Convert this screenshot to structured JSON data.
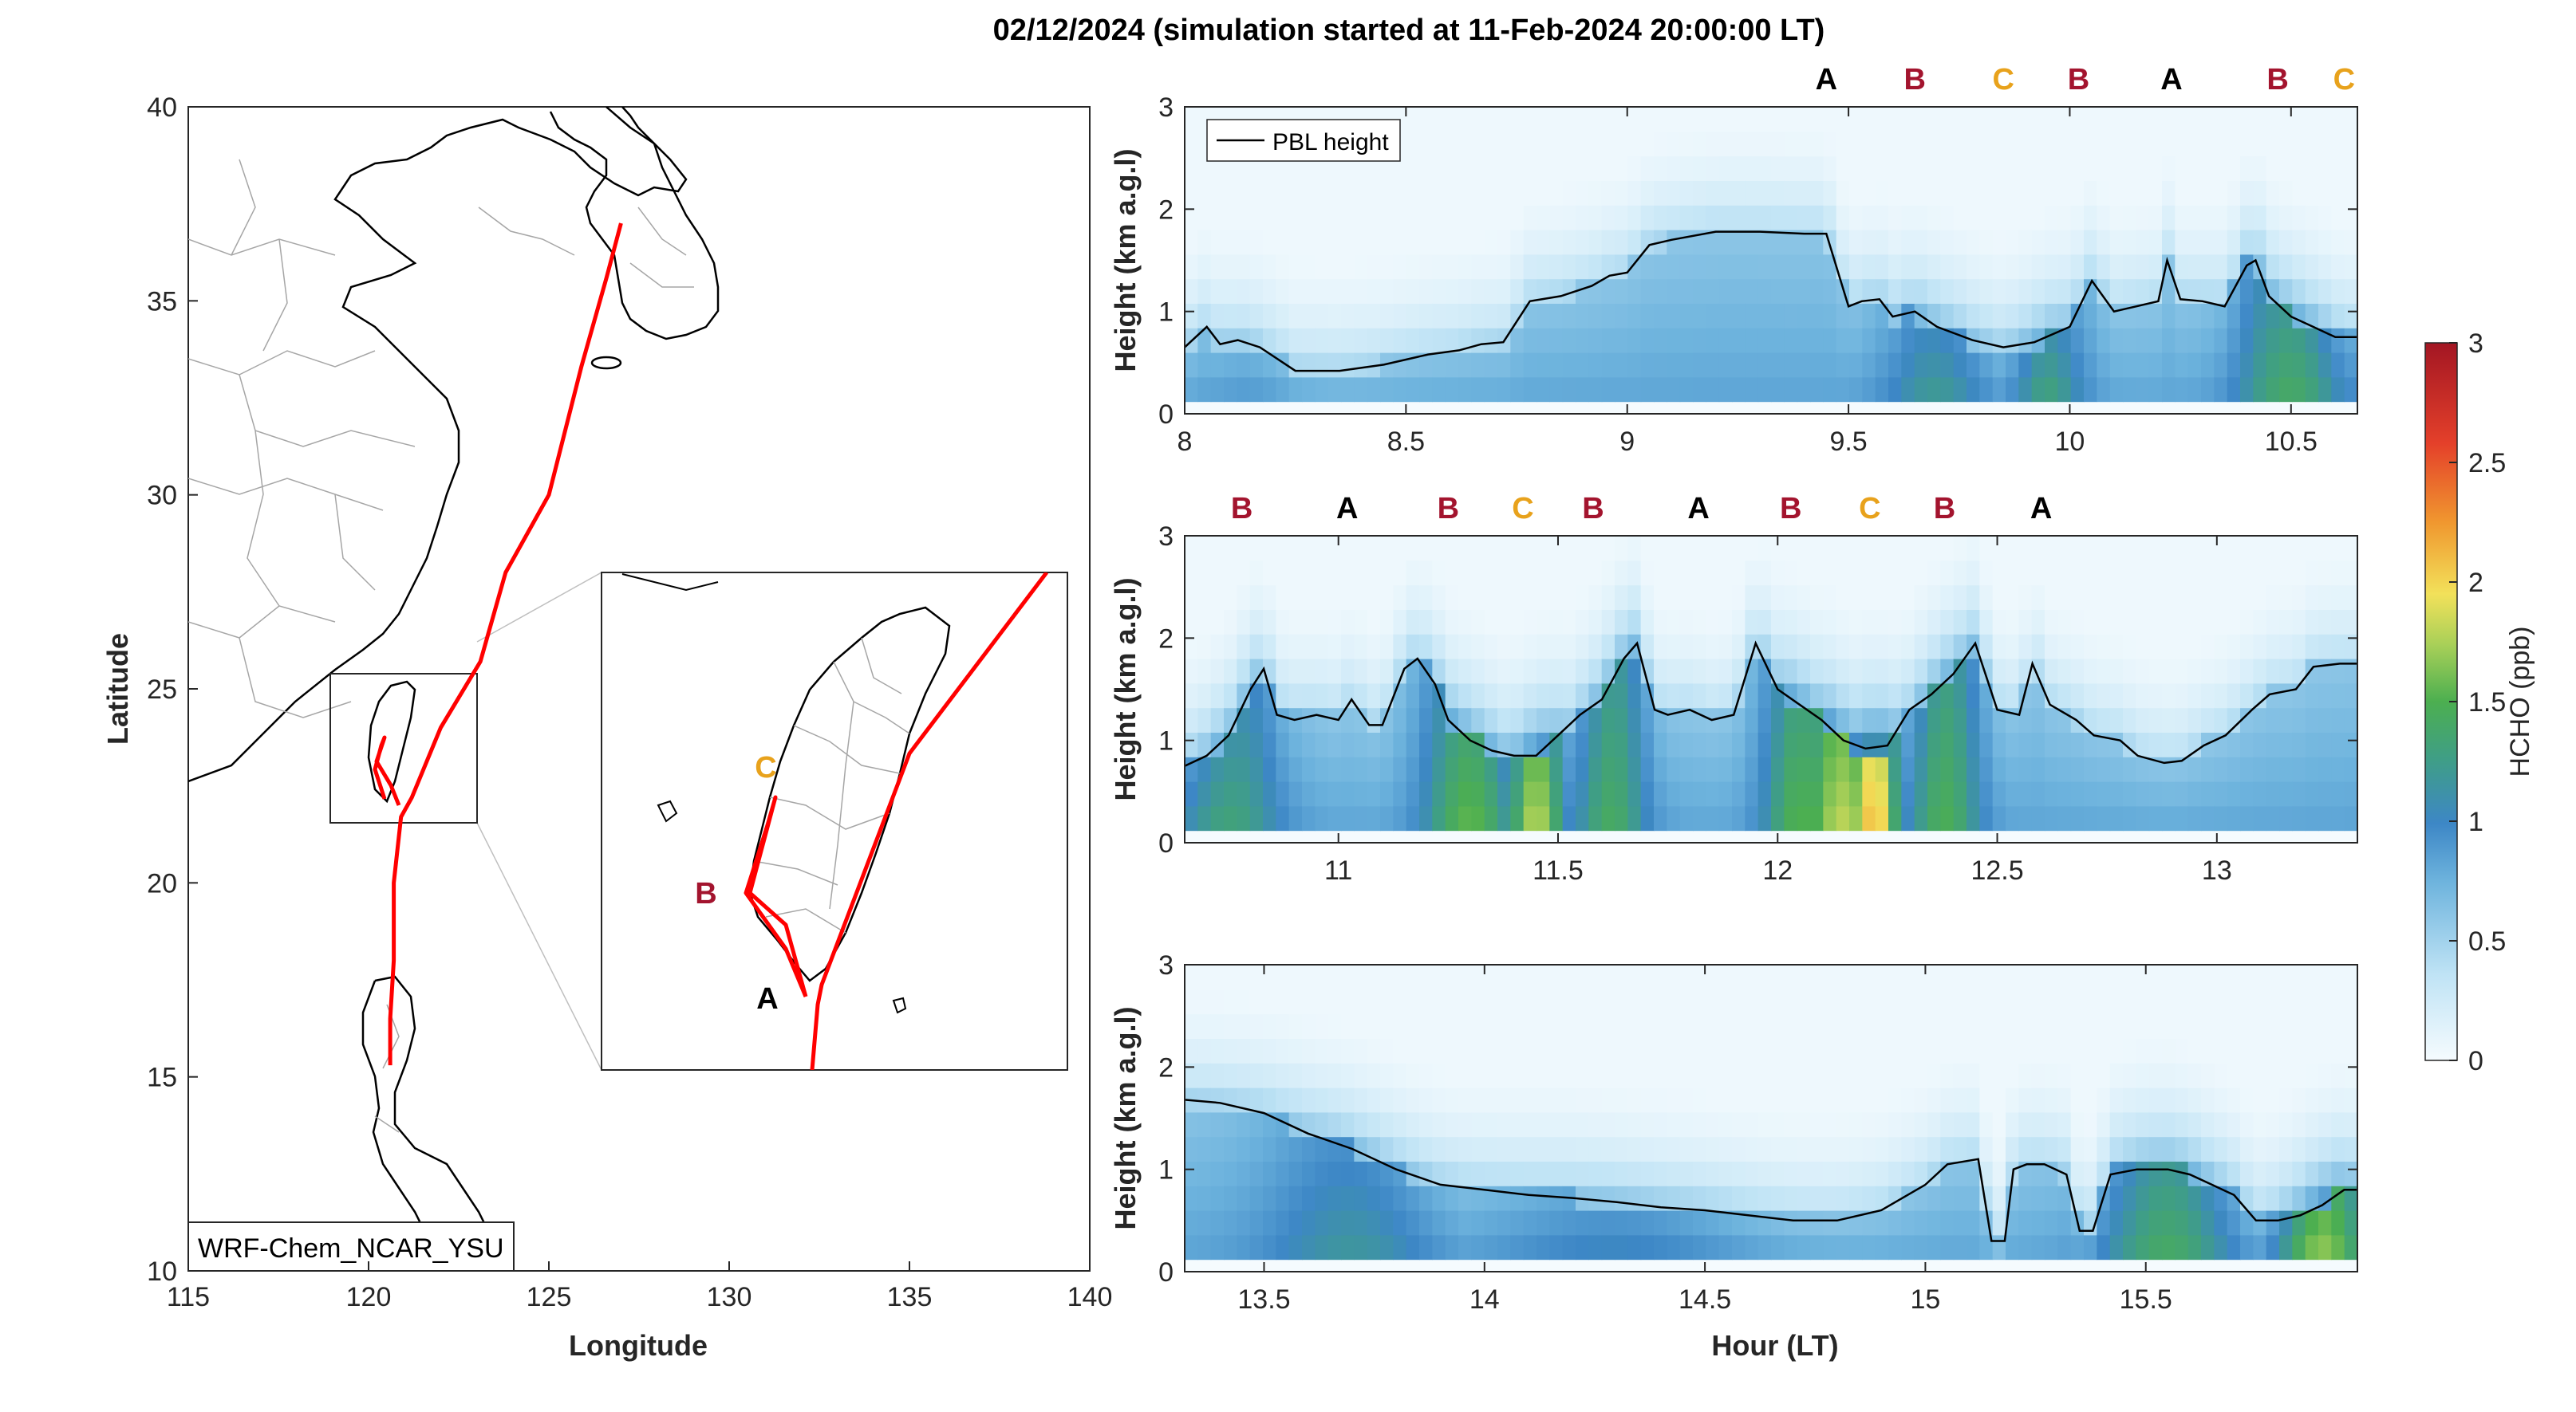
{
  "title": "02/12/2024 (simulation started at 11-Feb-2024 20:00:00 LT)",
  "colors": {
    "A": "#000000",
    "B": "#a3142e",
    "C": "#e8a21c",
    "track": "#ff0000",
    "pbl": "#000000"
  },
  "map": {
    "xlabel": "Longitude",
    "ylabel": "Latitude",
    "xlim": [
      115,
      140
    ],
    "ylim": [
      10,
      40
    ],
    "xticks": [
      "115",
      "120",
      "125",
      "130",
      "135",
      "140"
    ],
    "yticks": [
      "10",
      "15",
      "20",
      "25",
      "30",
      "35",
      "40"
    ],
    "model_label": "WRF-Chem_NCAR_YSU",
    "inset_letters": [
      "C",
      "B",
      "A"
    ],
    "track": [
      [
        127.0,
        37.0
      ],
      [
        126.6,
        35.6
      ],
      [
        125.9,
        33.3
      ],
      [
        125.0,
        30.0
      ],
      [
        123.8,
        28.0
      ],
      [
        123.1,
        25.7
      ],
      [
        122.0,
        24.0
      ],
      [
        121.2,
        22.2
      ],
      [
        120.9,
        21.7
      ],
      [
        120.7,
        20.0
      ],
      [
        120.7,
        18.0
      ],
      [
        120.6,
        16.5
      ],
      [
        120.6,
        15.3
      ]
    ]
  },
  "chart_data": [
    {
      "type": "heatmap",
      "xlabel": "",
      "ylabel": "Height (km a.g.l)",
      "xlim": [
        8.0,
        10.65
      ],
      "ylim": [
        0,
        3
      ],
      "xticks": [
        "8",
        "8.5",
        "9",
        "9.5",
        "10",
        "10.5"
      ],
      "yticks": [
        "0",
        "1",
        "2",
        "3"
      ],
      "legend": "PBL height",
      "legend_position": "top-left",
      "letters": [
        {
          "label": "A",
          "x": 9.45
        },
        {
          "label": "B",
          "x": 9.65
        },
        {
          "label": "C",
          "x": 9.85
        },
        {
          "label": "B",
          "x": 10.02
        },
        {
          "label": "A",
          "x": 10.23
        },
        {
          "label": "B",
          "x": 10.47
        },
        {
          "label": "C",
          "x": 10.62
        }
      ],
      "series": [
        {
          "name": "PBL height",
          "x": [
            8.0,
            8.05,
            8.08,
            8.12,
            8.17,
            8.25,
            8.35,
            8.45,
            8.55,
            8.62,
            8.67,
            8.72,
            8.78,
            8.85,
            8.92,
            8.96,
            9.0,
            9.05,
            9.1,
            9.2,
            9.3,
            9.4,
            9.45,
            9.5,
            9.53,
            9.57,
            9.6,
            9.65,
            9.7,
            9.78,
            9.85,
            9.92,
            10.0,
            10.05,
            10.1,
            10.15,
            10.2,
            10.22,
            10.25,
            10.3,
            10.35,
            10.4,
            10.42,
            10.45,
            10.5,
            10.55,
            10.6,
            10.65
          ],
          "y": [
            0.65,
            0.85,
            0.68,
            0.72,
            0.65,
            0.42,
            0.42,
            0.48,
            0.58,
            0.62,
            0.68,
            0.7,
            1.1,
            1.15,
            1.25,
            1.35,
            1.38,
            1.65,
            1.7,
            1.78,
            1.78,
            1.76,
            1.76,
            1.05,
            1.1,
            1.12,
            0.95,
            1.0,
            0.85,
            0.72,
            0.65,
            0.7,
            0.85,
            1.3,
            1.0,
            1.05,
            1.1,
            1.5,
            1.12,
            1.1,
            1.05,
            1.45,
            1.5,
            1.15,
            0.95,
            0.85,
            0.75,
            0.75
          ]
        }
      ]
    },
    {
      "type": "heatmap",
      "xlabel": "",
      "ylabel": "Height (km a.g.l)",
      "xlim": [
        10.65,
        13.32
      ],
      "ylim": [
        0,
        3
      ],
      "xticks": [
        "11",
        "11.5",
        "12",
        "12.5",
        "13"
      ],
      "yticks": [
        "0",
        "1",
        "2",
        "3"
      ],
      "letters": [
        {
          "label": "B",
          "x": 10.78
        },
        {
          "label": "A",
          "x": 11.02
        },
        {
          "label": "B",
          "x": 11.25
        },
        {
          "label": "C",
          "x": 11.42
        },
        {
          "label": "B",
          "x": 11.58
        },
        {
          "label": "A",
          "x": 11.82
        },
        {
          "label": "B",
          "x": 12.03
        },
        {
          "label": "C",
          "x": 12.21
        },
        {
          "label": "B",
          "x": 12.38
        },
        {
          "label": "A",
          "x": 12.6
        }
      ],
      "series": [
        {
          "name": "PBL height",
          "x": [
            10.65,
            10.7,
            10.75,
            10.8,
            10.83,
            10.86,
            10.9,
            10.95,
            11.0,
            11.03,
            11.07,
            11.1,
            11.15,
            11.18,
            11.22,
            11.25,
            11.3,
            11.35,
            11.4,
            11.45,
            11.5,
            11.55,
            11.6,
            11.65,
            11.68,
            11.72,
            11.75,
            11.8,
            11.85,
            11.9,
            11.95,
            12.0,
            12.05,
            12.1,
            12.15,
            12.2,
            12.25,
            12.3,
            12.35,
            12.4,
            12.45,
            12.5,
            12.55,
            12.58,
            12.62,
            12.68,
            12.72,
            12.78,
            12.82,
            12.88,
            12.92,
            12.97,
            13.02,
            13.08,
            13.12,
            13.18,
            13.22,
            13.28,
            13.32
          ],
          "y": [
            0.75,
            0.85,
            1.05,
            1.5,
            1.7,
            1.25,
            1.2,
            1.25,
            1.2,
            1.4,
            1.15,
            1.15,
            1.7,
            1.8,
            1.55,
            1.2,
            1.0,
            0.9,
            0.85,
            0.85,
            1.05,
            1.25,
            1.4,
            1.8,
            1.95,
            1.3,
            1.25,
            1.3,
            1.2,
            1.25,
            1.95,
            1.5,
            1.35,
            1.2,
            1.0,
            0.92,
            0.95,
            1.3,
            1.45,
            1.65,
            1.95,
            1.3,
            1.25,
            1.75,
            1.35,
            1.2,
            1.05,
            1.0,
            0.85,
            0.78,
            0.8,
            0.95,
            1.05,
            1.3,
            1.45,
            1.5,
            1.72,
            1.75,
            1.75
          ]
        }
      ]
    },
    {
      "type": "heatmap",
      "xlabel": "Hour (LT)",
      "ylabel": "Height (km a.g.l)",
      "xlim": [
        13.32,
        15.98
      ],
      "ylim": [
        0,
        3
      ],
      "xticks": [
        "13.5",
        "14",
        "14.5",
        "15",
        "15.5"
      ],
      "yticks": [
        "0",
        "1",
        "2",
        "3"
      ],
      "series": [
        {
          "name": "PBL height",
          "x": [
            13.32,
            13.4,
            13.5,
            13.6,
            13.7,
            13.8,
            13.9,
            14.0,
            14.1,
            14.2,
            14.3,
            14.4,
            14.5,
            14.6,
            14.7,
            14.8,
            14.9,
            15.0,
            15.05,
            15.12,
            15.15,
            15.18,
            15.2,
            15.23,
            15.27,
            15.32,
            15.35,
            15.38,
            15.42,
            15.48,
            15.55,
            15.6,
            15.65,
            15.7,
            15.75,
            15.8,
            15.85,
            15.9,
            15.95,
            15.98
          ],
          "y": [
            1.68,
            1.65,
            1.55,
            1.35,
            1.2,
            1.0,
            0.85,
            0.8,
            0.75,
            0.72,
            0.68,
            0.63,
            0.6,
            0.55,
            0.5,
            0.5,
            0.6,
            0.85,
            1.05,
            1.1,
            0.3,
            0.3,
            1.0,
            1.05,
            1.05,
            0.95,
            0.4,
            0.4,
            0.95,
            1.0,
            1.0,
            0.95,
            0.85,
            0.75,
            0.5,
            0.5,
            0.55,
            0.65,
            0.8,
            0.8
          ]
        }
      ]
    }
  ],
  "colorbar": {
    "label": "HCHO (ppb)",
    "ticks": [
      "0",
      "0.5",
      "1",
      "1.5",
      "2",
      "2.5",
      "3"
    ],
    "range": [
      0,
      3
    ]
  }
}
